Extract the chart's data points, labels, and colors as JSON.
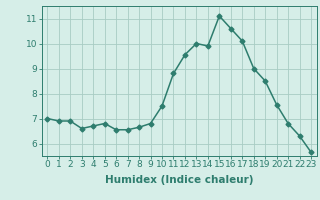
{
  "x": [
    0,
    1,
    2,
    3,
    4,
    5,
    6,
    7,
    8,
    9,
    10,
    11,
    12,
    13,
    14,
    15,
    16,
    17,
    18,
    19,
    20,
    21,
    22,
    23
  ],
  "y": [
    7.0,
    6.9,
    6.9,
    6.6,
    6.7,
    6.8,
    6.55,
    6.55,
    6.65,
    6.8,
    7.5,
    8.8,
    9.55,
    10.0,
    9.9,
    11.1,
    10.6,
    10.1,
    9.0,
    8.5,
    7.55,
    6.8,
    6.3,
    5.65
  ],
  "line_color": "#2e7d6e",
  "marker": "D",
  "markersize": 2.5,
  "linewidth": 1.1,
  "bg_color": "#d6eee8",
  "grid_color": "#a8ccc4",
  "xlabel": "Humidex (Indice chaleur)",
  "xlim": [
    -0.5,
    23.5
  ],
  "ylim": [
    5.5,
    11.5
  ],
  "yticks": [
    6,
    7,
    8,
    9,
    10,
    11
  ],
  "xticks": [
    0,
    1,
    2,
    3,
    4,
    5,
    6,
    7,
    8,
    9,
    10,
    11,
    12,
    13,
    14,
    15,
    16,
    17,
    18,
    19,
    20,
    21,
    22,
    23
  ],
  "xlabel_fontsize": 7.5,
  "tick_fontsize": 6.5,
  "axis_color": "#2e7d6e"
}
